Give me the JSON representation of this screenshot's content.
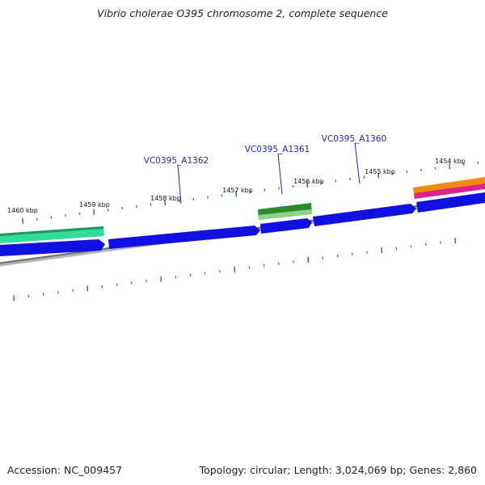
{
  "title": "Vibrio cholerae O395 chromosome 2, complete sequence",
  "accession_text": "Accession: NC_009457",
  "summary_text": "Topology: circular; Length: 3,024,069 bp; Genes: 2,860",
  "colors": {
    "backbone": "#8a8a8a",
    "cds_blue": "#1010e0",
    "gene_green": "#2c8c2c",
    "teal": "#33dd99",
    "orange": "#f08a10",
    "magenta": "#e0208c",
    "tick_green": "#2b8a2b",
    "label_blue": "#2222bb"
  },
  "kbp_ticks": [
    {
      "kbp": 1454,
      "label": "1454 kbp"
    },
    {
      "kbp": 1455,
      "label": "1455 kbp"
    },
    {
      "kbp": 1456,
      "label": "1456 kbp"
    },
    {
      "kbp": 1457,
      "label": "1457 kbp"
    },
    {
      "kbp": 1458,
      "label": "1458 kbp"
    },
    {
      "kbp": 1459,
      "label": "1459 kbp"
    },
    {
      "kbp": 1460,
      "label": "1460 kbp"
    }
  ],
  "gene_labels": [
    {
      "name": "VC0395_A1362"
    },
    {
      "name": "VC0395_A1361"
    },
    {
      "name": "VC0395_A1360"
    }
  ]
}
